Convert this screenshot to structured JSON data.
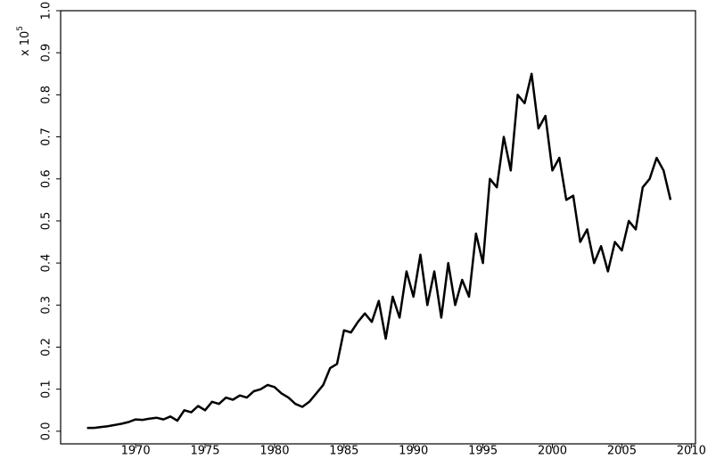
{
  "chart_data": {
    "type": "line",
    "ylabel_base": "x 10",
    "ylabel_exponent": "5",
    "x": [
      1966.5,
      1967,
      1967.5,
      1968,
      1968.5,
      1969,
      1969.5,
      1970,
      1970.5,
      1971,
      1971.5,
      1972,
      1972.5,
      1973,
      1973.5,
      1974,
      1974.5,
      1975,
      1975.5,
      1976,
      1976.5,
      1977,
      1977.5,
      1978,
      1978.5,
      1979,
      1979.5,
      1980,
      1980.5,
      1981,
      1981.5,
      1982,
      1982.5,
      1983,
      1983.5,
      1984,
      1984.5,
      1985,
      1985.5,
      1986,
      1986.5,
      1987,
      1987.5,
      1988,
      1988.5,
      1989,
      1989.5,
      1990,
      1990.5,
      1991,
      1991.5,
      1992,
      1992.5,
      1993,
      1993.5,
      1994,
      1994.5,
      1995,
      1995.5,
      1996,
      1996.5,
      1997,
      1997.5,
      1998,
      1998.5,
      1999,
      1999.5,
      2000,
      2000.5,
      2001,
      2001.5,
      2002,
      2002.5,
      2003,
      2003.5,
      2004,
      2004.5,
      2005,
      2005.5,
      2006,
      2006.5,
      2007,
      2007.5,
      2008,
      2008.5
    ],
    "series": [
      {
        "color": "#000000",
        "values": [
          0.008,
          0.008,
          0.01,
          0.012,
          0.015,
          0.018,
          0.022,
          0.028,
          0.027,
          0.03,
          0.032,
          0.028,
          0.035,
          0.025,
          0.05,
          0.045,
          0.06,
          0.05,
          0.07,
          0.065,
          0.08,
          0.075,
          0.085,
          0.08,
          0.095,
          0.1,
          0.11,
          0.105,
          0.09,
          0.08,
          0.065,
          0.058,
          0.07,
          0.09,
          0.11,
          0.15,
          0.16,
          0.24,
          0.235,
          0.26,
          0.28,
          0.26,
          0.31,
          0.22,
          0.32,
          0.27,
          0.38,
          0.32,
          0.42,
          0.3,
          0.38,
          0.27,
          0.4,
          0.3,
          0.36,
          0.32,
          0.47,
          0.4,
          0.6,
          0.58,
          0.7,
          0.62,
          0.8,
          0.78,
          0.85,
          0.72,
          0.75,
          0.62,
          0.65,
          0.55,
          0.56,
          0.45,
          0.48,
          0.4,
          0.44,
          0.38,
          0.45,
          0.43,
          0.5,
          0.48,
          0.58,
          0.6,
          0.65,
          0.62,
          0.55
        ]
      }
    ],
    "xlim": [
      1964.6,
      2010.3
    ],
    "xticks": [
      1970,
      1975,
      1980,
      1985,
      1990,
      1995,
      2000,
      2005,
      2010
    ],
    "ylim": [
      -0.03,
      1.0
    ],
    "yticks": [
      {
        "value": 0,
        "label": "0.0"
      },
      0.1,
      0.2,
      0.3,
      0.4,
      0.5,
      0.6,
      0.7,
      0.8,
      0.9,
      {
        "value": 1,
        "label": "1.0"
      }
    ]
  }
}
